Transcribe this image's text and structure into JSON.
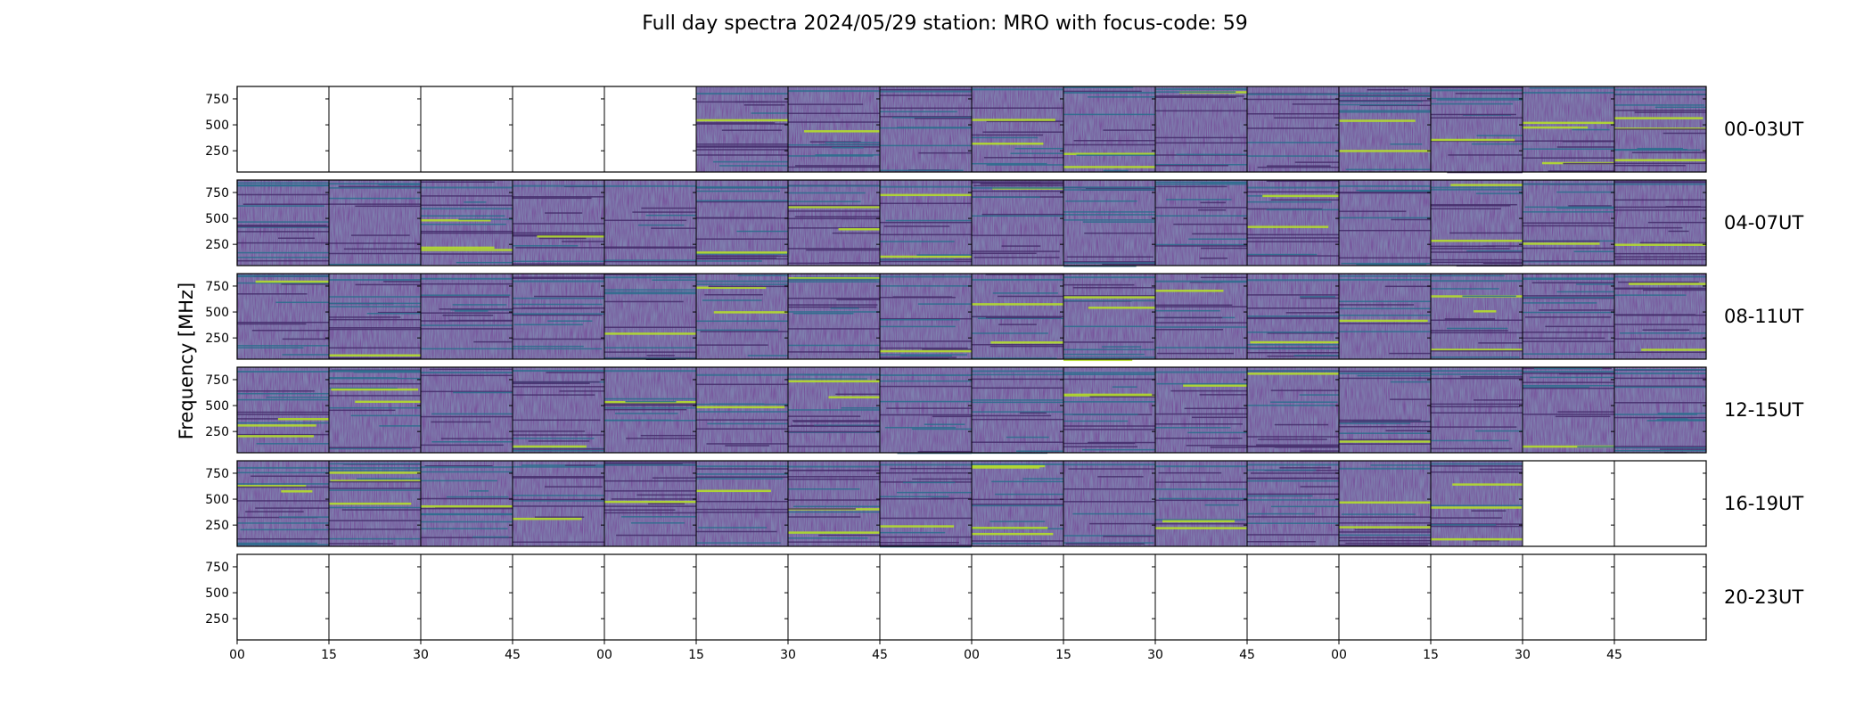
{
  "chart_data": {
    "type": "heatmap",
    "title": "Full day spectra 2024/05/29 station: MRO with focus-code: 59",
    "ylabel": "Frequency [MHz]",
    "xlabel": "",
    "yticks": [
      "250",
      "500",
      "750"
    ],
    "ytick_values": [
      250,
      500,
      750
    ],
    "ylim": [
      45,
      870
    ],
    "xticks": [
      "00",
      "15",
      "30",
      "45",
      "00",
      "15",
      "30",
      "45",
      "00",
      "15",
      "30",
      "45",
      "00",
      "15",
      "30",
      "45"
    ],
    "rows": [
      {
        "label": "00-03UT",
        "panels_with_data": [
          0,
          0,
          0,
          0,
          0,
          1,
          1,
          1,
          1,
          1,
          1,
          1,
          1,
          1,
          1,
          1
        ]
      },
      {
        "label": "04-07UT",
        "panels_with_data": [
          1,
          1,
          1,
          1,
          1,
          1,
          1,
          1,
          1,
          1,
          1,
          1,
          1,
          1,
          1,
          1
        ]
      },
      {
        "label": "08-11UT",
        "panels_with_data": [
          1,
          1,
          1,
          1,
          1,
          1,
          1,
          1,
          1,
          1,
          1,
          1,
          1,
          1,
          1,
          1
        ]
      },
      {
        "label": "12-15UT",
        "panels_with_data": [
          1,
          1,
          1,
          1,
          1,
          1,
          1,
          1,
          1,
          1,
          1,
          1,
          1,
          1,
          1,
          1
        ]
      },
      {
        "label": "16-19UT",
        "panels_with_data": [
          1,
          1,
          1,
          1,
          1,
          1,
          1,
          1,
          1,
          1,
          1,
          1,
          1,
          1,
          0,
          0
        ]
      },
      {
        "label": "20-23UT",
        "panels_with_data": [
          0,
          0,
          0,
          0,
          0,
          0,
          0,
          0,
          0,
          0,
          0,
          0,
          0,
          0,
          0,
          0
        ]
      }
    ],
    "colormap": {
      "low": "#3b1a5c",
      "mid": "#2d6e8e",
      "high": "#b5de2b"
    }
  }
}
